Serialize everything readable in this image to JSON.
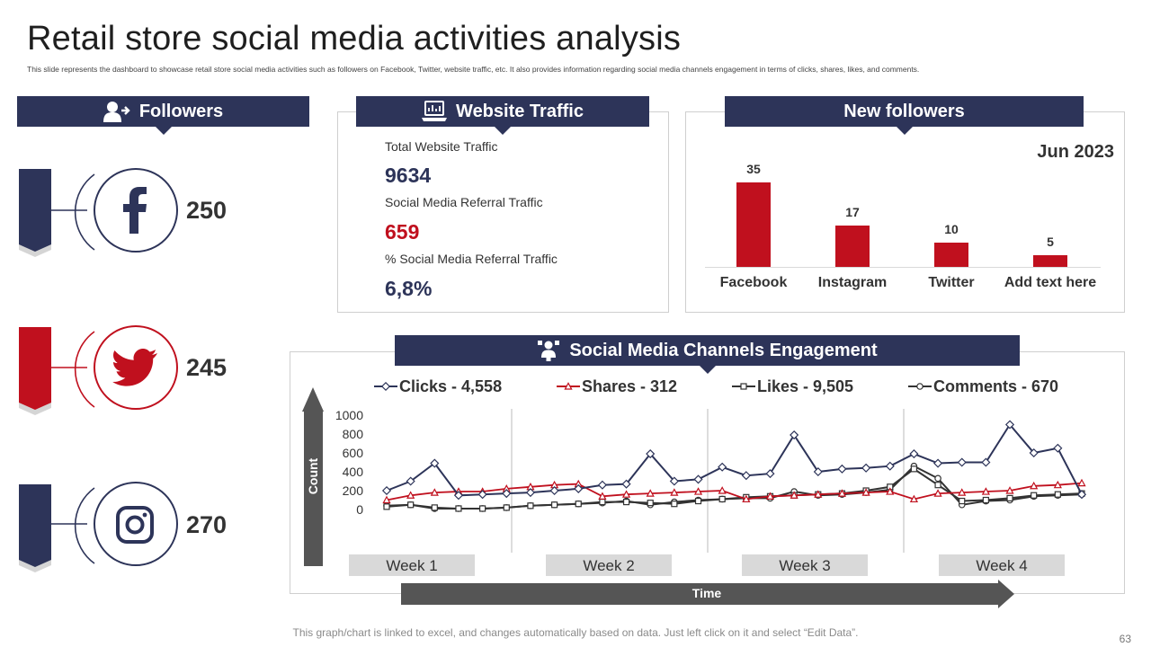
{
  "page": {
    "title": "Retail store social media activities analysis",
    "subtitle": "This slide represents the dashboard to showcase retail store social media activities such as followers on Facebook, Twitter, website traffic, etc. It also provides information regarding social media channels engagement in terms of clicks, shares, likes, and comments.",
    "footer": "This graph/chart is linked to excel, and changes automatically based on data. Just left click on it and select “Edit Data”.",
    "page_number": "63"
  },
  "colors": {
    "navy": "#2d3459",
    "red": "#c0101e",
    "gray": "#555555",
    "light_gray": "#d9d9d9"
  },
  "followers": {
    "title": "Followers",
    "icon": "add-user-icon",
    "items": [
      {
        "network": "Facebook",
        "icon": "facebook-icon",
        "count": "250",
        "color": "#2d3459"
      },
      {
        "network": "Twitter",
        "icon": "twitter-icon",
        "count": "245",
        "color": "#c0101e"
      },
      {
        "network": "Instagram",
        "icon": "instagram-icon",
        "count": "270",
        "color": "#2d3459"
      }
    ]
  },
  "website_traffic": {
    "title": "Website Traffic",
    "icon": "laptop-icon",
    "total_label": "Total Website Traffic",
    "total_value": "9634",
    "referral_label": "Social Media  Referral Traffic",
    "referral_value": "659",
    "pct_label": "% Social Media  Referral Traffic",
    "pct_value": "6,8%"
  },
  "new_followers": {
    "title": "New followers",
    "period": "Jun 2023",
    "chart_data": {
      "type": "bar",
      "title": "New followers",
      "categories": [
        "Facebook",
        "Instagram",
        "Twitter",
        "Add text here"
      ],
      "values": [
        35,
        17,
        10,
        5
      ],
      "ylim": [
        0,
        35
      ],
      "xlabel": "",
      "ylabel": ""
    }
  },
  "engagement": {
    "title": "Social Media Channels Engagement",
    "icon": "network-user-icon",
    "chart_data": {
      "type": "line",
      "title": "Social Media Channels Engagement",
      "xlabel": "Time",
      "ylabel": "Count",
      "ylim": [
        0,
        1000
      ],
      "yticks": [
        0,
        200,
        400,
        600,
        800,
        1000
      ],
      "weeks": [
        "Week 1",
        "Week 2",
        "Week 3",
        "Week 4"
      ],
      "series": [
        {
          "name": "Clicks - 4,558",
          "marker": "diamond",
          "color": "#2d3459",
          "values": [
            200,
            300,
            490,
            150,
            160,
            170,
            180,
            200,
            220,
            260,
            270,
            590,
            300,
            320,
            450,
            360,
            380,
            790,
            400,
            430,
            440,
            460,
            590,
            490,
            500,
            500,
            900,
            600,
            650,
            160
          ]
        },
        {
          "name": "Shares - 312",
          "marker": "triangle",
          "color": "#c0101e",
          "values": [
            100,
            150,
            180,
            190,
            190,
            220,
            240,
            260,
            270,
            140,
            160,
            170,
            180,
            190,
            200,
            110,
            140,
            150,
            160,
            170,
            180,
            190,
            110,
            170,
            180,
            190,
            200,
            250,
            260,
            280
          ]
        },
        {
          "name": "Likes - 9,505",
          "marker": "square",
          "color": "#333333",
          "values": [
            30,
            50,
            20,
            10,
            10,
            20,
            40,
            50,
            60,
            80,
            80,
            70,
            60,
            90,
            110,
            130,
            140,
            150,
            160,
            170,
            200,
            240,
            430,
            260,
            90,
            100,
            120,
            150,
            160,
            170
          ]
        },
        {
          "name": "Comments - 670",
          "marker": "circle",
          "color": "#333333",
          "values": [
            40,
            50,
            10,
            10,
            10,
            20,
            40,
            50,
            60,
            70,
            90,
            50,
            80,
            100,
            110,
            120,
            120,
            190,
            150,
            160,
            180,
            210,
            460,
            330,
            50,
            90,
            100,
            140,
            150,
            160
          ]
        }
      ]
    }
  }
}
